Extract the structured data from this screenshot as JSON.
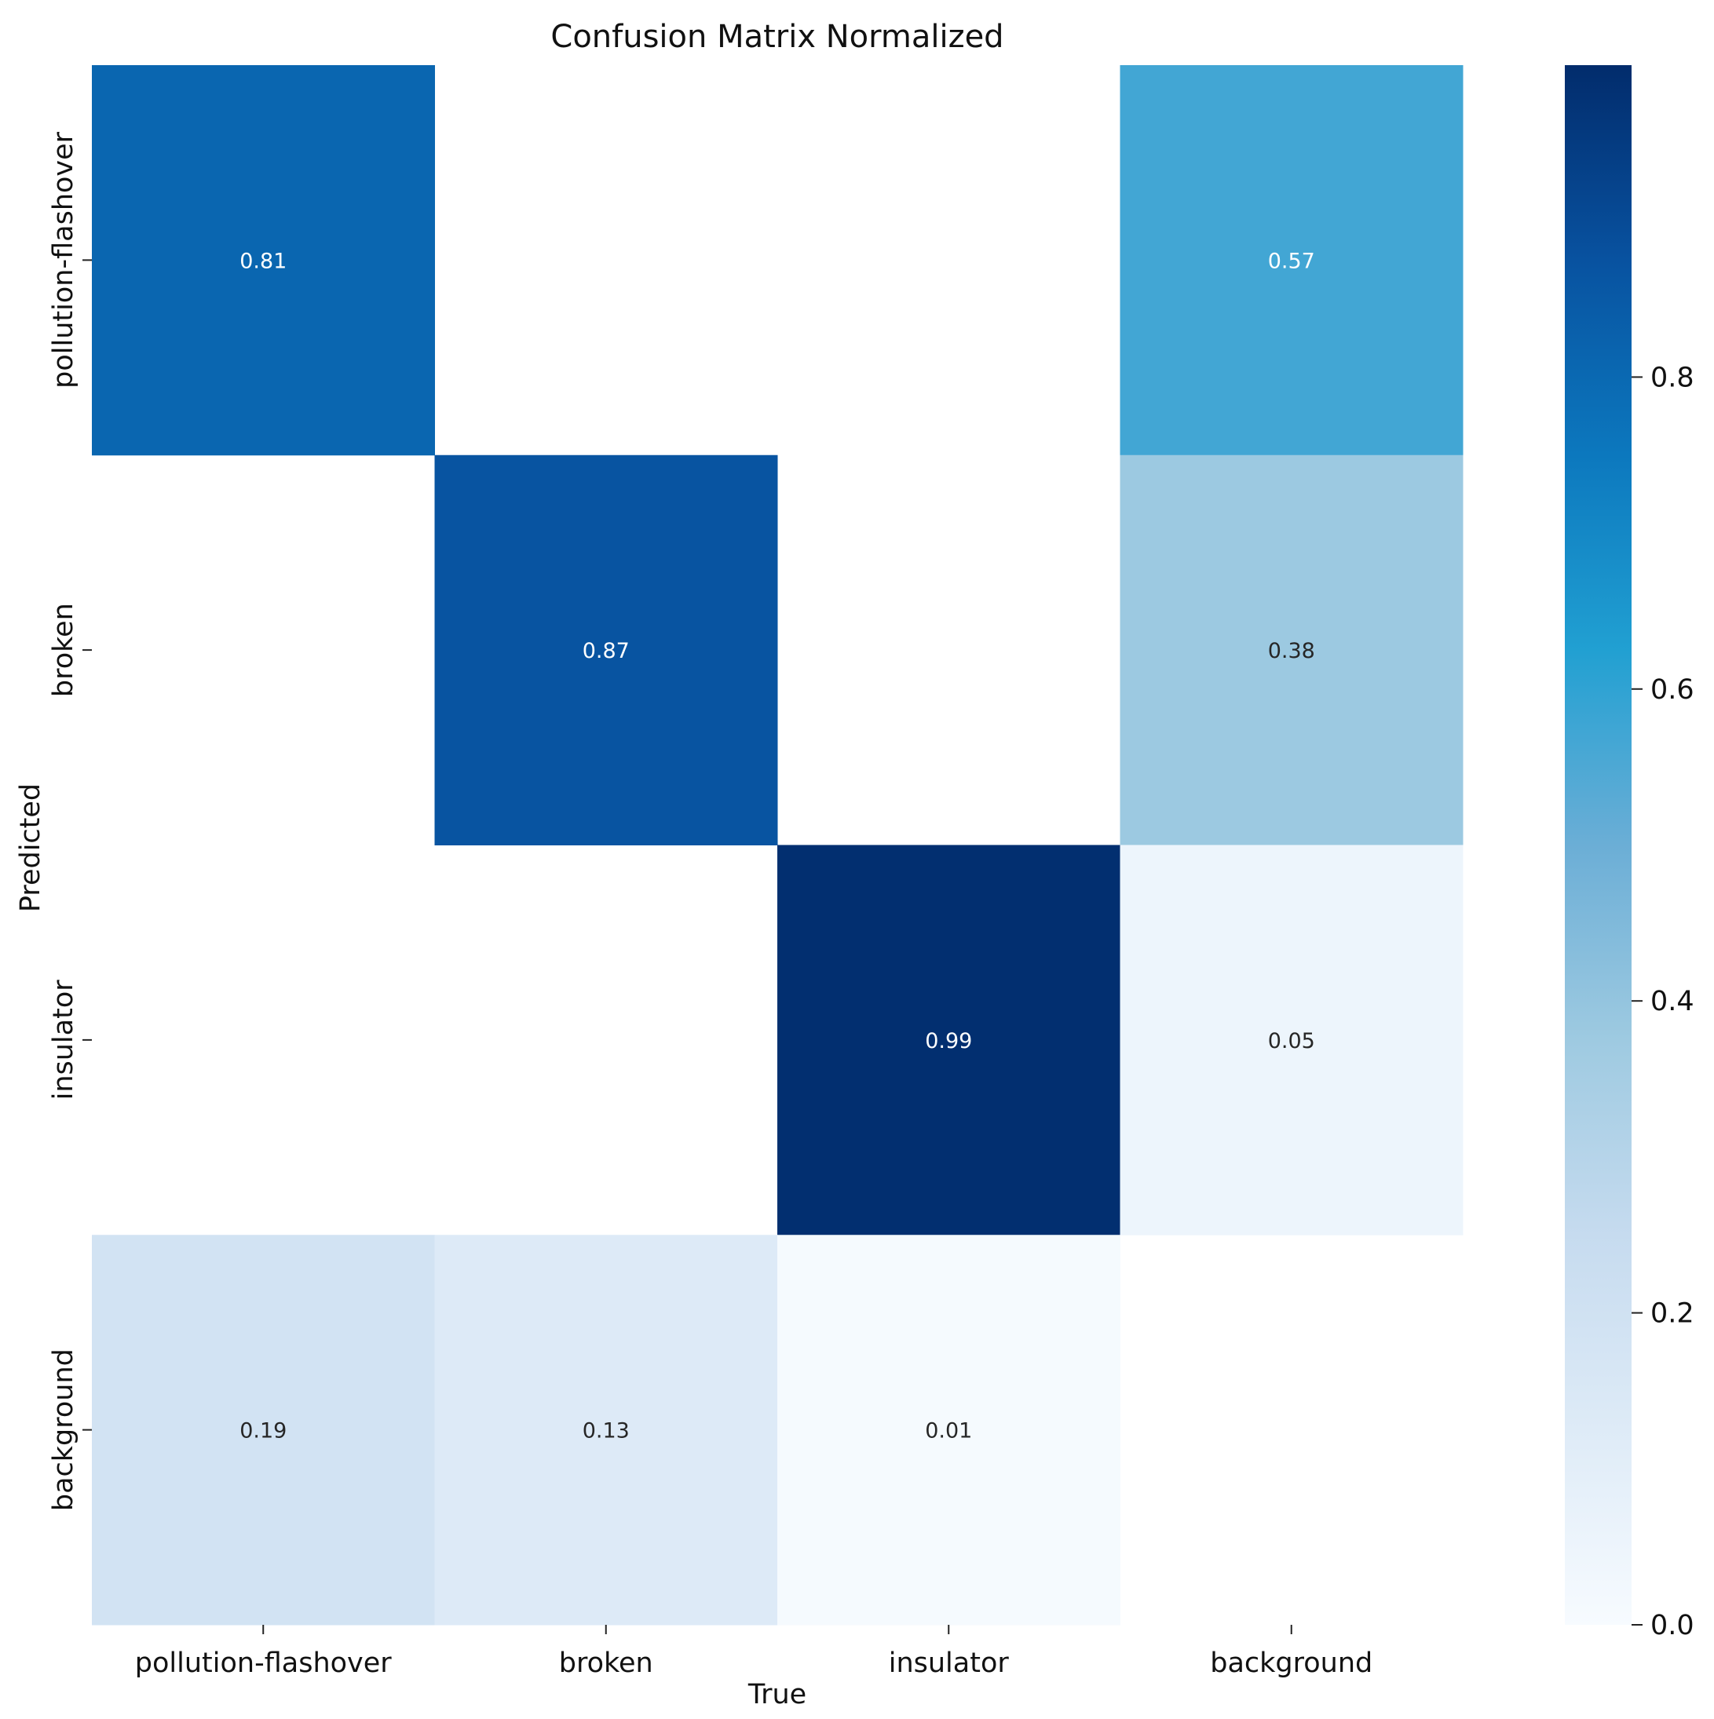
{
  "chart_data": {
    "type": "heatmap",
    "title": "Confusion Matrix Normalized",
    "xlabel": "True",
    "ylabel": "Predicted",
    "x_categories": [
      "pollution-flashover",
      "broken",
      "insulator",
      "background"
    ],
    "y_categories": [
      "pollution-flashover",
      "broken",
      "insulator",
      "background"
    ],
    "matrix": [
      [
        0.81,
        null,
        null,
        0.57
      ],
      [
        null,
        0.87,
        null,
        0.38
      ],
      [
        null,
        null,
        0.99,
        0.05
      ],
      [
        0.19,
        0.13,
        0.01,
        null
      ]
    ],
    "colorbar": {
      "range": [
        0.0,
        1.0
      ],
      "ticks": [
        0.0,
        0.2,
        0.4,
        0.6,
        0.8
      ],
      "tick_labels": [
        "0.0",
        "0.2",
        "0.4",
        "0.6",
        "0.8"
      ],
      "colormap": "Blues"
    }
  }
}
